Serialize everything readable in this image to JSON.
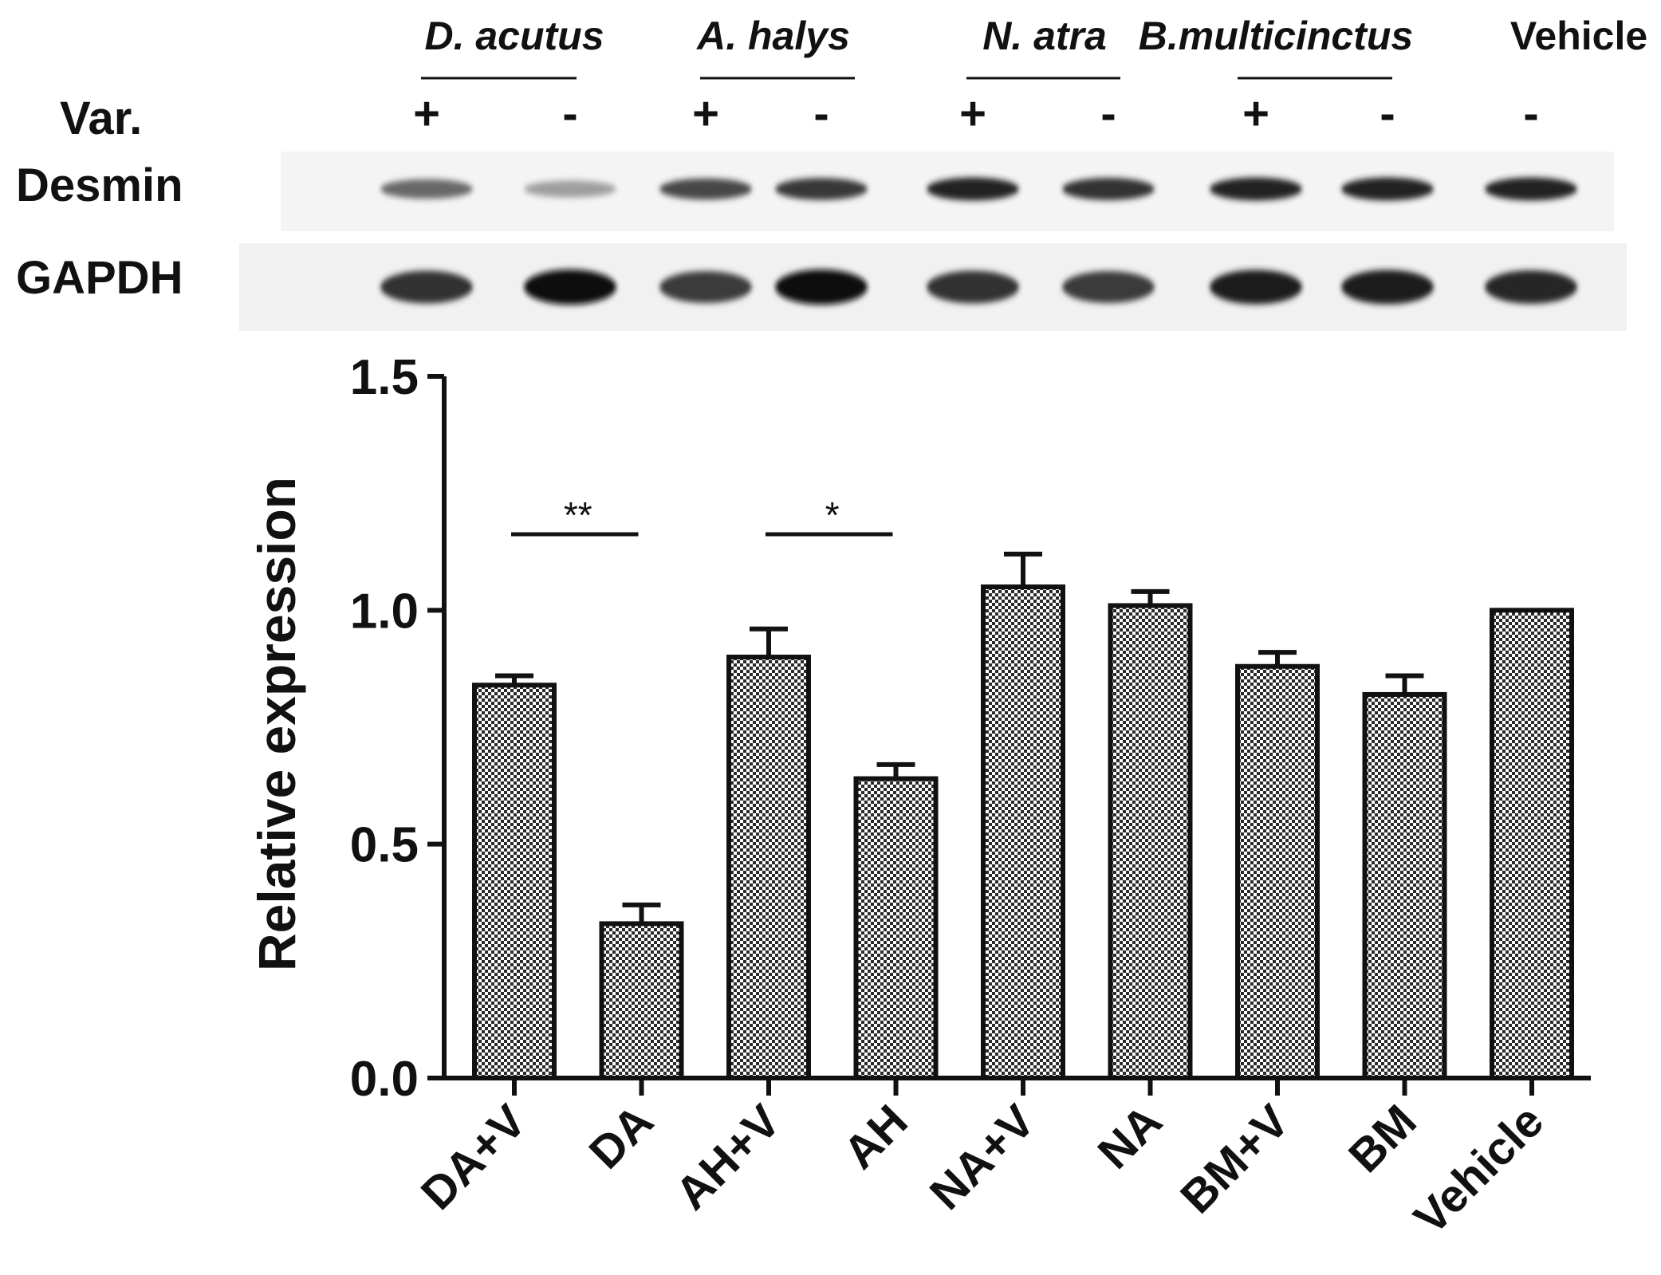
{
  "blot": {
    "groups": [
      {
        "label": "D. acutus",
        "italic": true
      },
      {
        "label": "A. halys",
        "italic": true
      },
      {
        "label": "N. atra",
        "italic": true
      },
      {
        "label": "B.multicinctus",
        "italic": true
      },
      {
        "label": "Vehicle",
        "italic": false
      }
    ],
    "row_labels": {
      "var": "Var.",
      "desmin": "Desmin",
      "gapdh": "GAPDH"
    },
    "var_signs": [
      "+",
      "-",
      "+",
      "-",
      "+",
      "-",
      "+",
      "-",
      "-"
    ],
    "desmin_intensity": [
      0.6,
      0.35,
      0.75,
      0.82,
      0.92,
      0.85,
      0.92,
      0.92,
      0.92
    ],
    "gapdh_intensity": [
      0.85,
      1.0,
      0.8,
      1.0,
      0.85,
      0.8,
      0.95,
      0.95,
      0.9
    ]
  },
  "chart_data": {
    "type": "bar",
    "title": "",
    "xlabel": "",
    "ylabel": "Relative expression",
    "ylim": [
      0,
      1.5
    ],
    "yticks": [
      "0.0",
      "0.5",
      "1.0",
      "1.5"
    ],
    "categories": [
      "DA+V",
      "DA",
      "AH+V",
      "AH",
      "NA+V",
      "NA",
      "BM+V",
      "BM",
      "Vehicle"
    ],
    "values": [
      0.84,
      0.33,
      0.9,
      0.64,
      1.05,
      1.01,
      0.88,
      0.82,
      1.0
    ],
    "errors": [
      0.02,
      0.04,
      0.06,
      0.03,
      0.07,
      0.03,
      0.03,
      0.04,
      0.0
    ],
    "significance": [
      {
        "from": 0,
        "to": 1,
        "label": "**"
      },
      {
        "from": 2,
        "to": 3,
        "label": "*"
      }
    ],
    "bar_pattern": "checkerboard",
    "grid": false,
    "legend": "none"
  }
}
